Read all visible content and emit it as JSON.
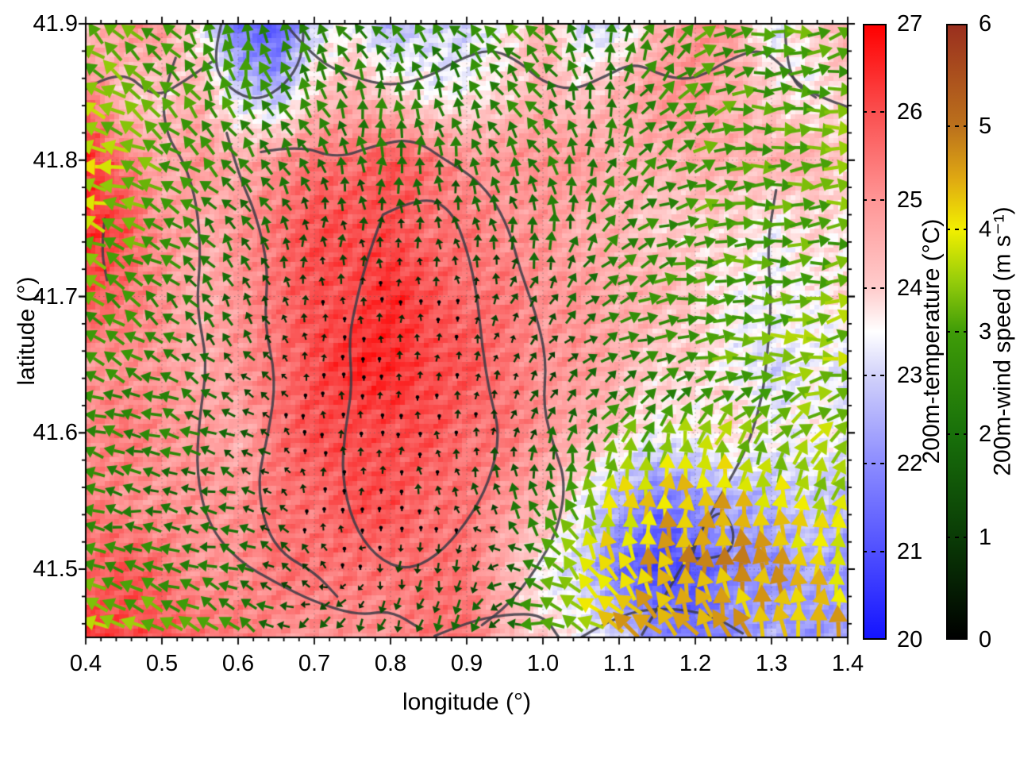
{
  "figure": {
    "background": "#ffffff",
    "xlabel": "longitude (°)",
    "ylabel": "latitude (°)",
    "x_ticks": [
      0.4,
      0.5,
      0.6,
      0.7,
      0.8,
      0.9,
      1.0,
      1.1,
      1.2,
      1.3,
      1.4
    ],
    "x_tick_labels": [
      "0.4",
      "0.5",
      "0.6",
      "0.7",
      "0.8",
      "0.9",
      "1.0",
      "1.1",
      "1.2",
      "1.3",
      "1.4"
    ],
    "y_ticks": [
      41.5,
      41.6,
      41.7,
      41.8,
      41.9
    ],
    "y_tick_labels": [
      "41.5",
      "41.6",
      "41.7",
      "41.8",
      "41.9"
    ],
    "frame_color": "#000000",
    "grid_color": "#5a5a5a"
  },
  "colorbars": {
    "temperature": {
      "title": "200m-temperature (°C)",
      "min": 20,
      "max": 27,
      "ticks": [
        20,
        21,
        22,
        23,
        24,
        25,
        26,
        27
      ],
      "tick_labels": [
        "20",
        "21",
        "22",
        "23",
        "24",
        "25",
        "26",
        "27"
      ],
      "stops": [
        [
          20,
          "#1414ff"
        ],
        [
          21,
          "#5050ff"
        ],
        [
          22,
          "#8c8cff"
        ],
        [
          23,
          "#d2d2fa"
        ],
        [
          23.5,
          "#ffffff"
        ],
        [
          24,
          "#ffcccc"
        ],
        [
          25,
          "#ff9696"
        ],
        [
          26,
          "#fa5050"
        ],
        [
          27,
          "#ff0000"
        ]
      ]
    },
    "wind": {
      "title": "200m-wind speed (m s⁻¹)",
      "min": 0,
      "max": 6,
      "ticks": [
        0,
        1,
        2,
        3,
        4,
        5,
        6
      ],
      "tick_labels": [
        "0",
        "1",
        "2",
        "3",
        "4",
        "5",
        "6"
      ],
      "stops": [
        [
          0,
          "#000000"
        ],
        [
          1,
          "#0a3c06"
        ],
        [
          2,
          "#18700a"
        ],
        [
          3,
          "#3f9c08"
        ],
        [
          3.5,
          "#96cd0a"
        ],
        [
          4,
          "#f2ef00"
        ],
        [
          4.5,
          "#dfa812"
        ],
        [
          5,
          "#bc721c"
        ],
        [
          6,
          "#9a2f1e"
        ]
      ]
    }
  },
  "chart_data": {
    "type": "heatmap",
    "title": "",
    "xlabel": "longitude (°)",
    "ylabel": "latitude (°)",
    "xlim": [
      0.4,
      1.4
    ],
    "ylim": [
      41.45,
      41.9
    ],
    "grid": true,
    "contour_color": "#3c3c46",
    "temperature_field": {
      "units": "°C",
      "lon": [
        0.4,
        0.45,
        0.5,
        0.55,
        0.6,
        0.65,
        0.7,
        0.75,
        0.8,
        0.85,
        0.9,
        0.95,
        1.0,
        1.05,
        1.1,
        1.15,
        1.2,
        1.25,
        1.3,
        1.35,
        1.4
      ],
      "lat": [
        41.9,
        41.85,
        41.8,
        41.75,
        41.7,
        41.65,
        41.6,
        41.55,
        41.5,
        41.45
      ],
      "values": [
        [
          24.0,
          25.0,
          25.0,
          23.5,
          21.5,
          21.0,
          23.0,
          23.5,
          22.5,
          23.0,
          23.0,
          23.5,
          24.5,
          23.0,
          23.0,
          24.5,
          25.0,
          25.0,
          23.0,
          24.0,
          24.5
        ],
        [
          25.5,
          24.0,
          24.0,
          24.5,
          23.0,
          22.5,
          24.0,
          24.5,
          24.0,
          23.5,
          23.5,
          24.0,
          24.5,
          24.0,
          24.5,
          25.0,
          25.0,
          24.5,
          24.0,
          23.5,
          24.0
        ],
        [
          26.5,
          25.5,
          24.5,
          25.0,
          24.5,
          25.0,
          25.5,
          25.5,
          26.0,
          25.5,
          25.0,
          25.0,
          25.0,
          25.0,
          24.5,
          24.5,
          24.5,
          24.5,
          24.5,
          24.5,
          24.0
        ],
        [
          26.5,
          26.0,
          25.0,
          24.5,
          25.0,
          25.5,
          26.0,
          26.0,
          26.0,
          25.5,
          25.5,
          25.0,
          25.0,
          24.5,
          24.5,
          24.0,
          24.0,
          24.0,
          23.5,
          24.0,
          23.5
        ],
        [
          26.0,
          25.5,
          25.0,
          24.5,
          25.0,
          25.5,
          26.0,
          26.0,
          26.5,
          26.0,
          25.5,
          25.5,
          25.0,
          25.0,
          24.5,
          24.5,
          24.0,
          23.5,
          23.5,
          23.5,
          24.0
        ],
        [
          25.0,
          25.0,
          25.0,
          24.5,
          25.0,
          25.5,
          26.0,
          26.5,
          26.5,
          26.0,
          26.0,
          25.5,
          25.0,
          25.0,
          24.5,
          24.0,
          24.0,
          23.5,
          23.0,
          23.5,
          23.0
        ],
        [
          25.0,
          25.5,
          25.0,
          25.0,
          24.5,
          25.5,
          26.0,
          26.0,
          26.0,
          26.0,
          25.5,
          25.5,
          25.0,
          24.5,
          24.0,
          23.5,
          23.5,
          24.0,
          23.5,
          23.5,
          23.5
        ],
        [
          25.5,
          25.0,
          25.0,
          25.0,
          25.0,
          25.5,
          25.5,
          26.0,
          26.0,
          25.5,
          25.5,
          25.0,
          24.5,
          23.5,
          22.5,
          21.5,
          22.0,
          22.5,
          22.5,
          23.0,
          22.5
        ],
        [
          25.5,
          26.0,
          25.5,
          25.0,
          25.0,
          25.5,
          25.5,
          25.5,
          25.5,
          25.5,
          25.5,
          24.5,
          23.5,
          23.0,
          21.5,
          20.8,
          21.0,
          22.0,
          22.0,
          22.5,
          22.0
        ],
        [
          26.5,
          26.0,
          26.0,
          25.5,
          25.5,
          25.0,
          25.0,
          25.0,
          25.0,
          25.5,
          25.5,
          24.5,
          24.0,
          23.5,
          23.0,
          22.0,
          21.5,
          22.0,
          22.5,
          22.0,
          22.5
        ]
      ]
    },
    "wind_field": {
      "units": "m s⁻¹",
      "lon": [
        0.4,
        0.5,
        0.6,
        0.7,
        0.8,
        0.9,
        1.0,
        1.1,
        1.2,
        1.3,
        1.4
      ],
      "lat": [
        41.9,
        41.85,
        41.8,
        41.75,
        41.7,
        41.65,
        41.6,
        41.55,
        41.5,
        41.45
      ],
      "speed": [
        [
          3.0,
          3.0,
          2.8,
          2.5,
          2.5,
          2.5,
          3.0,
          2.5,
          3.0,
          3.0,
          3.0
        ],
        [
          3.5,
          3.0,
          3.0,
          2.5,
          2.5,
          2.5,
          2.5,
          2.5,
          3.0,
          3.0,
          3.0
        ],
        [
          4.0,
          3.0,
          2.5,
          2.0,
          2.0,
          2.0,
          2.5,
          2.5,
          3.0,
          3.0,
          3.5
        ],
        [
          3.5,
          3.0,
          2.0,
          1.2,
          1.0,
          1.2,
          2.0,
          2.5,
          3.0,
          3.0,
          3.0
        ],
        [
          3.0,
          2.5,
          1.5,
          0.6,
          0.4,
          0.6,
          1.5,
          2.5,
          3.0,
          3.0,
          3.5
        ],
        [
          3.0,
          2.5,
          1.5,
          0.4,
          0.3,
          0.4,
          1.0,
          2.0,
          3.0,
          3.5,
          3.5
        ],
        [
          2.5,
          2.5,
          1.5,
          0.4,
          0.3,
          0.5,
          1.5,
          3.0,
          3.5,
          3.5,
          3.5
        ],
        [
          2.5,
          2.0,
          1.5,
          0.5,
          0.5,
          1.0,
          2.5,
          4.0,
          4.5,
          4.0,
          3.5
        ],
        [
          3.0,
          2.5,
          2.0,
          1.0,
          1.0,
          1.5,
          3.0,
          4.5,
          4.8,
          4.5,
          4.0
        ],
        [
          4.0,
          3.5,
          3.0,
          2.0,
          1.5,
          2.0,
          3.0,
          4.5,
          5.0,
          4.5,
          4.5
        ]
      ],
      "dir_deg_toward": [
        [
          315,
          315,
          0,
          330,
          315,
          315,
          315,
          0,
          45,
          90,
          75
        ],
        [
          300,
          315,
          345,
          330,
          0,
          330,
          315,
          20,
          60,
          90,
          80
        ],
        [
          280,
          300,
          315,
          340,
          0,
          345,
          330,
          30,
          70,
          90,
          85
        ],
        [
          290,
          300,
          330,
          0,
          0,
          345,
          0,
          45,
          80,
          90,
          85
        ],
        [
          300,
          315,
          330,
          0,
          0,
          0,
          30,
          60,
          85,
          90,
          80
        ],
        [
          290,
          300,
          315,
          0,
          0,
          0,
          30,
          60,
          80,
          85,
          80
        ],
        [
          290,
          290,
          300,
          0,
          0,
          345,
          20,
          30,
          10,
          40,
          50
        ],
        [
          280,
          280,
          290,
          0,
          0,
          345,
          340,
          0,
          0,
          0,
          10
        ],
        [
          290,
          280,
          290,
          330,
          180,
          190,
          300,
          330,
          0,
          0,
          0
        ],
        [
          300,
          310,
          320,
          210,
          200,
          210,
          280,
          300,
          320,
          350,
          0
        ]
      ]
    },
    "contours": [
      [
        [
          0.4,
          41.852
        ],
        [
          0.445,
          41.868
        ],
        [
          0.49,
          41.845
        ],
        [
          0.53,
          41.858
        ],
        [
          0.565,
          41.872
        ]
      ],
      [
        [
          0.578,
          41.9
        ],
        [
          0.565,
          41.872
        ],
        [
          0.588,
          41.852
        ],
        [
          0.625,
          41.843
        ],
        [
          0.662,
          41.855
        ],
        [
          0.684,
          41.875
        ],
        [
          0.686,
          41.9
        ]
      ],
      [
        [
          0.662,
          41.9
        ],
        [
          0.7,
          41.874
        ],
        [
          0.75,
          41.861
        ],
        [
          0.8,
          41.854
        ],
        [
          0.85,
          41.861
        ],
        [
          0.89,
          41.874
        ],
        [
          0.932,
          41.882
        ],
        [
          0.97,
          41.872
        ],
        [
          1.0,
          41.857
        ],
        [
          1.04,
          41.851
        ],
        [
          1.08,
          41.861
        ],
        [
          1.12,
          41.872
        ],
        [
          1.16,
          41.861
        ],
        [
          1.2,
          41.859
        ],
        [
          1.245,
          41.874
        ],
        [
          1.285,
          41.882
        ],
        [
          1.315,
          41.869
        ],
        [
          1.34,
          41.853
        ],
        [
          1.375,
          41.844
        ],
        [
          1.4,
          41.839
        ]
      ],
      [
        [
          1.318,
          41.895
        ],
        [
          1.32,
          41.86
        ],
        [
          1.358,
          41.846
        ]
      ],
      [
        [
          0.518,
          41.875
        ],
        [
          0.5,
          41.848
        ],
        [
          0.506,
          41.818
        ],
        [
          0.53,
          41.798
        ],
        [
          0.546,
          41.768
        ],
        [
          0.551,
          41.73
        ],
        [
          0.545,
          41.692
        ],
        [
          0.56,
          41.652
        ],
        [
          0.549,
          41.61
        ],
        [
          0.545,
          41.57
        ],
        [
          0.561,
          41.532
        ],
        [
          0.6,
          41.506
        ],
        [
          0.65,
          41.49
        ],
        [
          0.7,
          41.476
        ],
        [
          0.758,
          41.466
        ],
        [
          0.8,
          41.47
        ],
        [
          0.84,
          41.456
        ]
      ],
      [
        [
          0.585,
          41.82
        ],
        [
          0.6,
          41.79
        ],
        [
          0.624,
          41.76
        ],
        [
          0.64,
          41.72
        ],
        [
          0.634,
          41.68
        ],
        [
          0.65,
          41.64
        ],
        [
          0.64,
          41.6
        ],
        [
          0.625,
          41.565
        ],
        [
          0.636,
          41.53
        ],
        [
          0.66,
          41.51
        ],
        [
          0.7,
          41.498
        ],
        [
          0.73,
          41.48
        ]
      ],
      [
        [
          0.63,
          41.806
        ],
        [
          0.68,
          41.811
        ],
        [
          0.73,
          41.801
        ],
        [
          0.78,
          41.811
        ],
        [
          0.83,
          41.816
        ],
        [
          0.872,
          41.8
        ],
        [
          0.905,
          41.789
        ],
        [
          0.932,
          41.774
        ],
        [
          0.956,
          41.749
        ],
        [
          0.97,
          41.719
        ],
        [
          0.99,
          41.689
        ],
        [
          1.005,
          41.654
        ],
        [
          1.0,
          41.619
        ],
        [
          1.015,
          41.589
        ],
        [
          1.03,
          41.564
        ],
        [
          1.02,
          41.529
        ],
        [
          0.99,
          41.499
        ],
        [
          0.955,
          41.474
        ],
        [
          0.92,
          41.459
        ]
      ],
      [
        [
          0.79,
          41.76
        ],
        [
          0.84,
          41.774
        ],
        [
          0.88,
          41.764
        ],
        [
          0.901,
          41.734
        ],
        [
          0.914,
          41.7
        ],
        [
          0.92,
          41.664
        ],
        [
          0.93,
          41.629
        ],
        [
          0.944,
          41.599
        ],
        [
          0.93,
          41.564
        ],
        [
          0.9,
          41.534
        ],
        [
          0.86,
          41.509
        ],
        [
          0.82,
          41.499
        ],
        [
          0.78,
          41.509
        ],
        [
          0.75,
          41.534
        ],
        [
          0.736,
          41.569
        ],
        [
          0.74,
          41.601
        ],
        [
          0.75,
          41.634
        ],
        [
          0.745,
          41.669
        ],
        [
          0.756,
          41.699
        ],
        [
          0.77,
          41.729
        ],
        [
          0.79,
          41.76
        ]
      ],
      [
        [
          1.13,
          41.452
        ],
        [
          1.168,
          41.488
        ],
        [
          1.2,
          41.519
        ],
        [
          1.232,
          41.553
        ],
        [
          1.268,
          41.588
        ],
        [
          1.288,
          41.626
        ],
        [
          1.295,
          41.66
        ],
        [
          1.3,
          41.698
        ],
        [
          1.294,
          41.738
        ],
        [
          1.306,
          41.778
        ]
      ],
      [
        [
          1.195,
          41.508
        ],
        [
          1.238,
          41.507
        ],
        [
          1.254,
          41.524
        ],
        [
          1.236,
          41.545
        ],
        [
          1.208,
          41.531
        ],
        [
          1.195,
          41.508
        ]
      ],
      [
        [
          1.05,
          41.45
        ],
        [
          1.1,
          41.467
        ],
        [
          1.16,
          41.472
        ],
        [
          1.22,
          41.467
        ],
        [
          1.262,
          41.453
        ]
      ],
      [
        [
          0.858,
          41.451
        ],
        [
          0.9,
          41.461
        ],
        [
          0.95,
          41.467
        ],
        [
          1.0,
          41.467
        ],
        [
          1.022,
          41.449
        ]
      ],
      [
        [
          0.425,
          41.757
        ],
        [
          0.42,
          41.735
        ],
        [
          0.428,
          41.712
        ]
      ]
    ]
  }
}
